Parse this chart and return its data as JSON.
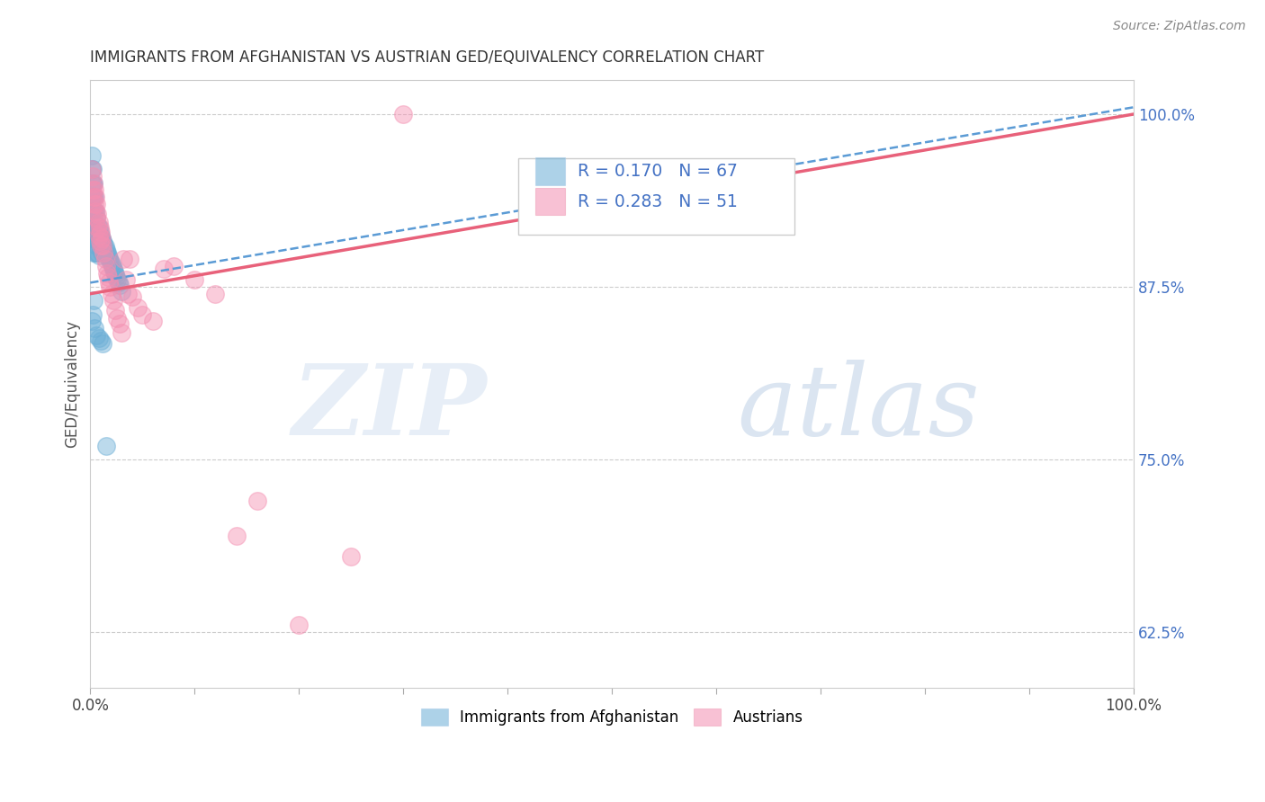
{
  "title": "IMMIGRANTS FROM AFGHANISTAN VS AUSTRIAN GED/EQUIVALENCY CORRELATION CHART",
  "source": "Source: ZipAtlas.com",
  "ylabel": "GED/Equivalency",
  "legend_r1": "R = 0.170",
  "legend_n1": "N = 67",
  "legend_r2": "R = 0.283",
  "legend_n2": "N = 51",
  "legend_label1": "Immigrants from Afghanistan",
  "legend_label2": "Austrians",
  "right_ytick_labels": [
    "62.5%",
    "75.0%",
    "87.5%",
    "100.0%"
  ],
  "right_ytick_values": [
    0.625,
    0.75,
    0.875,
    1.0
  ],
  "color_blue": "#6baed6",
  "color_pink": "#f48fb1",
  "color_blue_line": "#5b9bd5",
  "color_pink_line": "#e8617a",
  "color_right_axis": "#4472c4",
  "blue_scatter_x": [
    0.001,
    0.001,
    0.001,
    0.001,
    0.001,
    0.002,
    0.002,
    0.002,
    0.002,
    0.002,
    0.002,
    0.003,
    0.003,
    0.003,
    0.003,
    0.003,
    0.003,
    0.004,
    0.004,
    0.004,
    0.004,
    0.005,
    0.005,
    0.005,
    0.005,
    0.006,
    0.006,
    0.006,
    0.007,
    0.007,
    0.007,
    0.008,
    0.008,
    0.008,
    0.009,
    0.009,
    0.01,
    0.01,
    0.011,
    0.011,
    0.012,
    0.013,
    0.014,
    0.015,
    0.016,
    0.017,
    0.018,
    0.019,
    0.02,
    0.021,
    0.022,
    0.023,
    0.024,
    0.025,
    0.026,
    0.027,
    0.028,
    0.03,
    0.003,
    0.002,
    0.001,
    0.004,
    0.006,
    0.008,
    0.01,
    0.012,
    0.015
  ],
  "blue_scatter_y": [
    0.97,
    0.96,
    0.95,
    0.94,
    0.93,
    0.96,
    0.95,
    0.94,
    0.93,
    0.92,
    0.91,
    0.95,
    0.94,
    0.93,
    0.92,
    0.91,
    0.9,
    0.94,
    0.93,
    0.92,
    0.91,
    0.93,
    0.92,
    0.91,
    0.9,
    0.925,
    0.915,
    0.905,
    0.92,
    0.91,
    0.9,
    0.918,
    0.908,
    0.898,
    0.915,
    0.905,
    0.912,
    0.902,
    0.91,
    0.9,
    0.908,
    0.906,
    0.904,
    0.902,
    0.9,
    0.898,
    0.896,
    0.894,
    0.892,
    0.89,
    0.888,
    0.886,
    0.884,
    0.882,
    0.88,
    0.878,
    0.876,
    0.872,
    0.865,
    0.855,
    0.85,
    0.845,
    0.84,
    0.838,
    0.836,
    0.834,
    0.76
  ],
  "pink_scatter_x": [
    0.001,
    0.002,
    0.002,
    0.003,
    0.003,
    0.004,
    0.004,
    0.005,
    0.005,
    0.006,
    0.006,
    0.007,
    0.007,
    0.008,
    0.008,
    0.009,
    0.009,
    0.01,
    0.01,
    0.011,
    0.012,
    0.013,
    0.014,
    0.015,
    0.016,
    0.017,
    0.018,
    0.019,
    0.02,
    0.022,
    0.024,
    0.026,
    0.028,
    0.03,
    0.032,
    0.034,
    0.036,
    0.038,
    0.04,
    0.045,
    0.05,
    0.06,
    0.07,
    0.08,
    0.1,
    0.12,
    0.14,
    0.16,
    0.2,
    0.25,
    0.3
  ],
  "pink_scatter_y": [
    0.96,
    0.955,
    0.945,
    0.95,
    0.94,
    0.945,
    0.935,
    0.94,
    0.93,
    0.935,
    0.925,
    0.928,
    0.918,
    0.922,
    0.912,
    0.918,
    0.908,
    0.915,
    0.905,
    0.91,
    0.905,
    0.9,
    0.895,
    0.89,
    0.885,
    0.882,
    0.878,
    0.875,
    0.87,
    0.865,
    0.858,
    0.852,
    0.848,
    0.842,
    0.895,
    0.88,
    0.87,
    0.895,
    0.868,
    0.86,
    0.855,
    0.85,
    0.888,
    0.89,
    0.88,
    0.87,
    0.695,
    0.72,
    0.63,
    0.68,
    1.0
  ],
  "blue_line_x": [
    0.0,
    1.0
  ],
  "blue_line_y_start": 0.878,
  "blue_line_y_end": 1.005,
  "pink_line_x": [
    0.0,
    1.0
  ],
  "pink_line_y_start": 0.87,
  "pink_line_y_end": 1.0,
  "xlim": [
    0.0,
    1.0
  ],
  "ylim": [
    0.585,
    1.025
  ],
  "watermark_zip": "ZIP",
  "watermark_atlas": "atlas",
  "background_color": "#ffffff"
}
